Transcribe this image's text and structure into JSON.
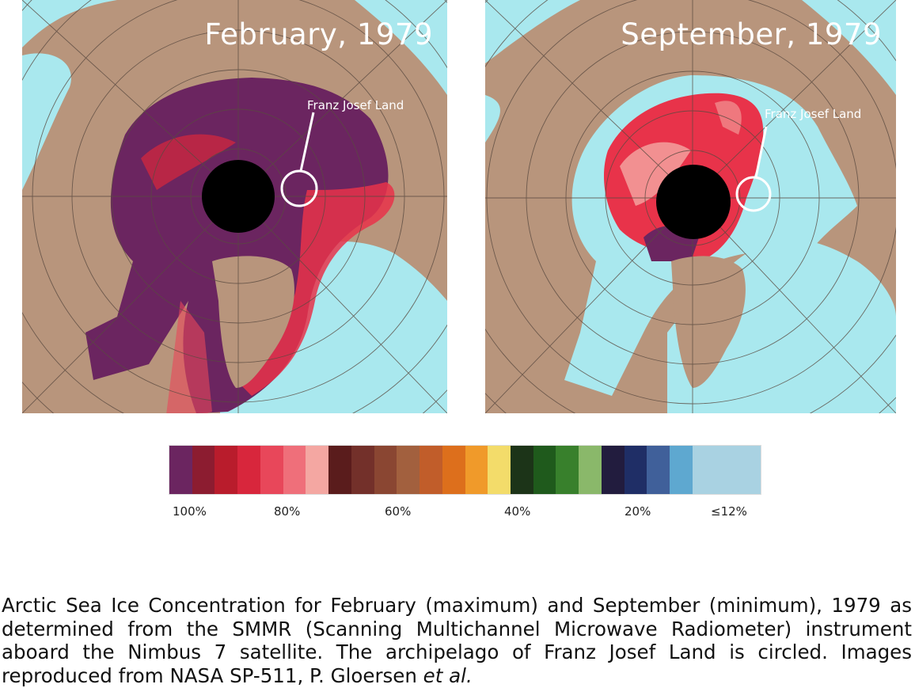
{
  "maps": [
    {
      "title": "February, 1979",
      "label": "Franz Josef Land"
    },
    {
      "title": "September, 1979",
      "label": "Franz Josef Land"
    }
  ],
  "legend": {
    "colors": [
      "#6b2560",
      "#8c1c30",
      "#b91c2c",
      "#d8263c",
      "#e8475a",
      "#ef6f7a",
      "#f4a7a2",
      "#5a1c1c",
      "#73302a",
      "#8a4632",
      "#a2603e",
      "#c15d2a",
      "#dd6f1c",
      "#f09a2a",
      "#f3dc6a",
      "#1c3418",
      "#1f5a1c",
      "#38802c",
      "#8ab86a",
      "#221c3e",
      "#1f2e66",
      "#40609a",
      "#5ea8d0",
      "#a9d2e2"
    ],
    "ticks": [
      "100%",
      "80%",
      "60%",
      "40%",
      "20%",
      "≤12%"
    ]
  },
  "caption": {
    "main": "Arctic Sea Ice Concentration for February (maximum) and September (minimum), 1979 as determined from the SMMR (Scanning Multichannel Microwave Radiometer) instrument aboard the Nimbus 7 satellite.  The archipelago of Franz Josef Land is circled.  Images reproduced from NASA SP-511, P. Gloersen ",
    "emphasis": "et al."
  },
  "colors": {
    "land": "#b8957c",
    "ocean": "#a9e8ee",
    "ice_high": "#6b2560",
    "ice_mid": "#e8334a",
    "grid": "#5a4a40",
    "pole": "#000000"
  }
}
